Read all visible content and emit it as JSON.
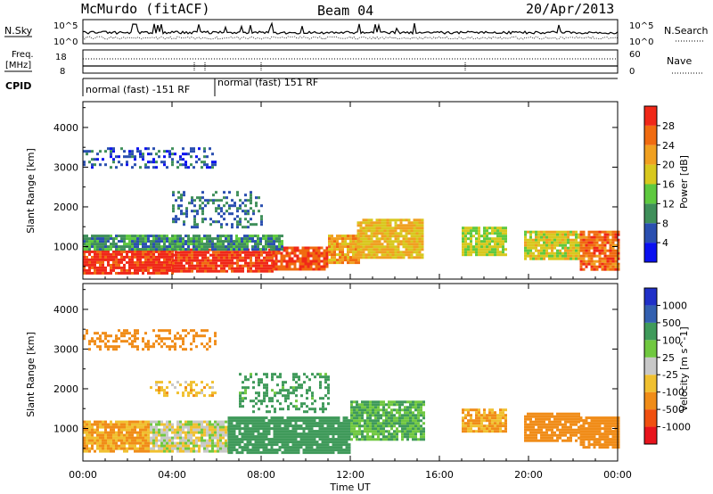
{
  "header": {
    "station": "McMurdo (fitACF)",
    "beam": "Beam 04",
    "date": "20/Apr/2013"
  },
  "panels": {
    "nsky": {
      "label": "N.Sky",
      "left_ticks": [
        "10^5",
        "10^0"
      ],
      "right_ticks": [
        "10^5",
        "10^0"
      ],
      "right_label": "N.Search"
    },
    "freq": {
      "label_line1": "Freq.",
      "label_line2": "[MHz]",
      "left_ticks": [
        "18",
        "8"
      ],
      "right_ticks": [
        "60",
        "0"
      ],
      "right_label": "Nave"
    },
    "cpid": {
      "label": "CPID",
      "segments": [
        "normal (fast) -151 RF",
        "normal (fast) 151 RF"
      ]
    }
  },
  "colors": {
    "power": [
      "#0a10f0",
      "#2a4fb0",
      "#3f8f5a",
      "#5ec93f",
      "#d8c81e",
      "#f0a020",
      "#f06b10",
      "#f02818"
    ],
    "velocity": [
      "#e8141c",
      "#f05010",
      "#f08c18",
      "#f0c030",
      "#c8c8c8",
      "#70c840",
      "#3f9a5a",
      "#3360b0",
      "#2030c8"
    ]
  },
  "chart_data": [
    {
      "type": "heatmap",
      "panel": "power",
      "xlabel": "Time UT",
      "ylabel": "Slant Range [km]",
      "x_ticks": [
        "00:00",
        "04:00",
        "08:00",
        "12:00",
        "16:00",
        "20:00",
        "00:00"
      ],
      "y_ticks": [
        1000,
        2000,
        3000,
        4000
      ],
      "xlim_hours": [
        0,
        24
      ],
      "ylim_km": [
        180,
        4650
      ],
      "colorbar": {
        "label": "Power [dB]",
        "ticks": [
          4,
          8,
          12,
          16,
          20,
          24,
          28
        ],
        "range": [
          0,
          32
        ]
      },
      "regions": [
        {
          "t": [
            0,
            4
          ],
          "r": [
            350,
            900
          ],
          "value": 30
        },
        {
          "t": [
            4,
            8.5
          ],
          "r": [
            380,
            950
          ],
          "value": 30
        },
        {
          "t": [
            8.5,
            11
          ],
          "r": [
            420,
            1000
          ],
          "value": 28
        },
        {
          "t": [
            11,
            12.4
          ],
          "r": [
            600,
            1300
          ],
          "value": 22
        },
        {
          "t": [
            12.3,
            15.3
          ],
          "r": [
            700,
            1700
          ],
          "value": 20
        },
        {
          "t": [
            17,
            19
          ],
          "r": [
            800,
            1500
          ],
          "value": 16
        },
        {
          "t": [
            19.8,
            22.3
          ],
          "r": [
            700,
            1400
          ],
          "value": 18
        },
        {
          "t": [
            22.3,
            24
          ],
          "r": [
            450,
            1400
          ],
          "value": 26
        },
        {
          "t": [
            0,
            9
          ],
          "r": [
            900,
            1300
          ],
          "value": 10
        },
        {
          "t": [
            4,
            8
          ],
          "r": [
            1500,
            2400
          ],
          "value": 8
        },
        {
          "t": [
            0,
            6
          ],
          "r": [
            3000,
            3500
          ],
          "value": 6
        }
      ]
    },
    {
      "type": "heatmap",
      "panel": "velocity",
      "xlabel": "Time UT",
      "ylabel": "Slant Range [km]",
      "x_ticks": [
        "00:00",
        "04:00",
        "08:00",
        "12:00",
        "16:00",
        "20:00",
        "00:00"
      ],
      "y_ticks": [
        1000,
        2000,
        3000,
        4000
      ],
      "xlim_hours": [
        0,
        24
      ],
      "ylim_km": [
        180,
        4650
      ],
      "colorbar": {
        "label": "Velocity [m s^-1]",
        "ticks": [
          -1000,
          -500,
          -100,
          -25,
          25,
          100,
          500,
          1000
        ]
      },
      "regions": [
        {
          "t": [
            0,
            3
          ],
          "r": [
            400,
            1200
          ],
          "value": -100
        },
        {
          "t": [
            3,
            6.5
          ],
          "r": [
            400,
            1200
          ],
          "value": 0
        },
        {
          "t": [
            6.5,
            12
          ],
          "r": [
            400,
            1300
          ],
          "value": 300
        },
        {
          "t": [
            12,
            15.3
          ],
          "r": [
            700,
            1700
          ],
          "value": 100
        },
        {
          "t": [
            17,
            19
          ],
          "r": [
            900,
            1500
          ],
          "value": -100
        },
        {
          "t": [
            19.8,
            22.3
          ],
          "r": [
            700,
            1400
          ],
          "value": -300
        },
        {
          "t": [
            22.3,
            24
          ],
          "r": [
            500,
            1300
          ],
          "value": -200
        },
        {
          "t": [
            7,
            11
          ],
          "r": [
            1400,
            2400
          ],
          "value": 150
        },
        {
          "t": [
            3,
            6
          ],
          "r": [
            1800,
            2200
          ],
          "value": -60
        },
        {
          "t": [
            0,
            6
          ],
          "r": [
            3000,
            3500
          ],
          "value": -400
        }
      ]
    }
  ]
}
